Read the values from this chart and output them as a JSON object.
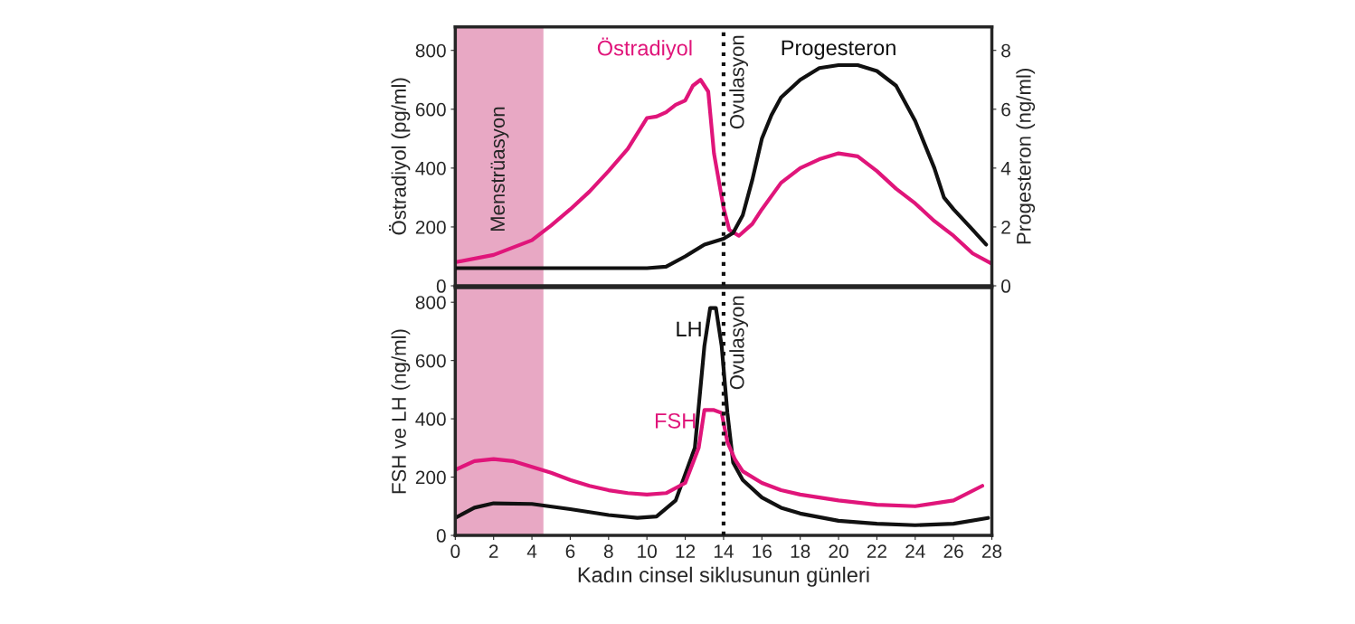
{
  "chart_data": [
    {
      "type": "line",
      "xlim": [
        0,
        28
      ],
      "ylim": [
        0,
        880
      ],
      "yticks": [
        0,
        200,
        400,
        600,
        800
      ],
      "y2lim": [
        0,
        8.8
      ],
      "y2ticks": [
        0,
        2,
        4,
        6,
        8
      ],
      "ylabel": "Östradiyol (pg/ml)",
      "y2label": "Progesteron (ng/ml)",
      "tick_labels": "y",
      "grid": false,
      "legend": false,
      "series": [
        {
          "name": "Östradiyol",
          "color": "#e0157a",
          "x": [
            0,
            2,
            4,
            5,
            6,
            7,
            8,
            9,
            10,
            10.5,
            11,
            11.5,
            12,
            12.4,
            12.8,
            13.2,
            13.5,
            14,
            14.3,
            14.8,
            15.5,
            16,
            17,
            18,
            19,
            20,
            21,
            22,
            23,
            24,
            25,
            26,
            27,
            28
          ],
          "values": [
            80,
            105,
            155,
            205,
            260,
            320,
            390,
            465,
            570,
            575,
            590,
            615,
            630,
            680,
            700,
            660,
            450,
            265,
            190,
            170,
            210,
            260,
            350,
            400,
            430,
            450,
            440,
            390,
            330,
            280,
            220,
            170,
            110,
            75
          ]
        },
        {
          "name": "Progesteron",
          "color": "#111111",
          "axis": "y2",
          "x": [
            0,
            2,
            4,
            6,
            8,
            10,
            11,
            12,
            13,
            14,
            14.5,
            15,
            15.5,
            16,
            16.5,
            17,
            18,
            19,
            20,
            21,
            22,
            23,
            24,
            25,
            25.5,
            26,
            27,
            27.7
          ],
          "values": [
            0.6,
            0.6,
            0.6,
            0.6,
            0.6,
            0.6,
            0.65,
            1.0,
            1.4,
            1.6,
            1.8,
            2.4,
            3.6,
            5.0,
            5.8,
            6.4,
            7.0,
            7.4,
            7.5,
            7.5,
            7.3,
            6.8,
            5.6,
            4.0,
            3.0,
            2.6,
            1.9,
            1.4
          ]
        }
      ],
      "ref_lines": [
        {
          "axis": "x",
          "value": 14,
          "label": "Ovulasyon",
          "color": "#111111",
          "line_style": "dotted"
        }
      ],
      "bands": [
        {
          "axis": "x",
          "from": 0,
          "to": 4.6,
          "label": "Menstrüasyon",
          "color": "#e8a8c4"
        }
      ]
    },
    {
      "type": "line",
      "xlim": [
        0,
        28
      ],
      "xticks": [
        0,
        2,
        4,
        6,
        8,
        10,
        12,
        14,
        16,
        18,
        20,
        22,
        24,
        26,
        28
      ],
      "ylim": [
        0,
        850
      ],
      "yticks": [
        0,
        200,
        400,
        600,
        800
      ],
      "xlabel": "Kadın cinsel siklusunun günleri",
      "ylabel": "FSH ve LH (ng/ml)",
      "grid": false,
      "legend": false,
      "series": [
        {
          "name": "LH",
          "color": "#111111",
          "x": [
            0,
            1,
            2,
            4,
            6,
            8,
            9.5,
            10.5,
            11.5,
            12.5,
            13,
            13.3,
            13.6,
            13.9,
            14.2,
            14.5,
            15,
            16,
            17,
            18,
            20,
            22,
            24,
            26,
            27.8
          ],
          "values": [
            60,
            95,
            110,
            108,
            90,
            70,
            60,
            65,
            120,
            300,
            650,
            780,
            780,
            650,
            420,
            250,
            190,
            130,
            95,
            75,
            50,
            40,
            35,
            40,
            60
          ]
        },
        {
          "name": "FSH",
          "color": "#e0157a",
          "x": [
            0,
            1,
            2,
            3,
            4,
            5,
            6,
            7,
            8,
            9,
            10,
            11,
            12,
            12.7,
            13,
            13.5,
            13.9,
            14.2,
            14.6,
            15,
            16,
            17,
            18,
            20,
            22,
            24,
            26,
            27.5
          ],
          "values": [
            225,
            255,
            262,
            255,
            235,
            215,
            190,
            170,
            155,
            145,
            140,
            145,
            180,
            300,
            430,
            430,
            420,
            320,
            260,
            220,
            180,
            155,
            140,
            120,
            105,
            100,
            120,
            170
          ]
        }
      ],
      "ref_lines": [
        {
          "axis": "x",
          "value": 14,
          "label": "Ovulasyon",
          "color": "#111111",
          "line_style": "dotted"
        }
      ],
      "bands": [
        {
          "axis": "x",
          "from": 0,
          "to": 4.6,
          "color": "#e8a8c4"
        }
      ]
    }
  ]
}
